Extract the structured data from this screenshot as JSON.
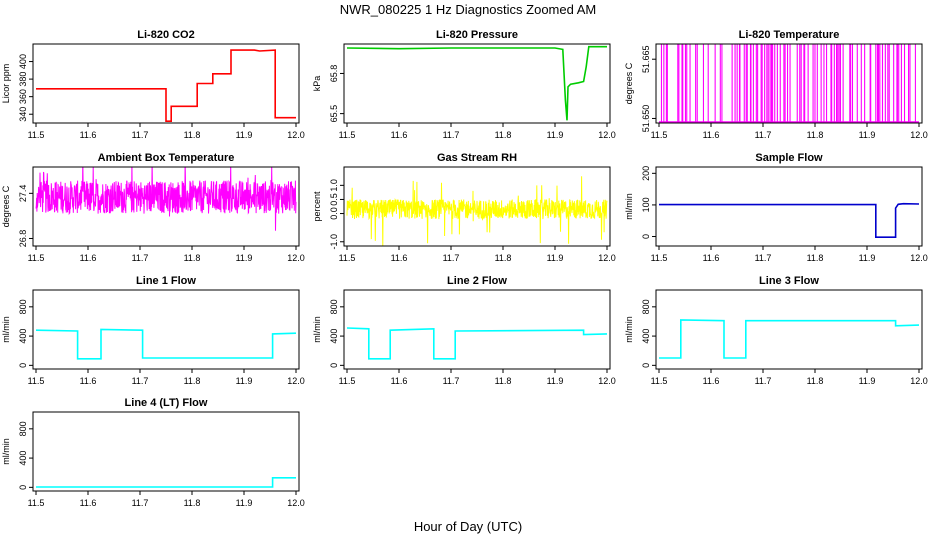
{
  "figure": {
    "title": "NWR_080225  1 Hz Diagnostics Zoomed AM",
    "xlabel": "Hour of Day (UTC)"
  },
  "chart_data": [
    {
      "type": "line",
      "title": "Li-820 CO2",
      "ylabel": "Licor ppm",
      "color": "#ff0000",
      "xlim": [
        11.5,
        12.0
      ],
      "ylim": [
        330,
        420
      ],
      "yticks": [
        340,
        360,
        380,
        400
      ],
      "xticks": [
        11.5,
        11.6,
        11.7,
        11.8,
        11.9,
        12.0
      ],
      "series": [
        {
          "x": [
            11.5,
            11.75,
            11.75,
            11.76,
            11.76,
            11.81,
            11.81,
            11.84,
            11.84,
            11.875,
            11.875,
            11.92,
            11.93,
            11.96,
            11.96,
            12.0
          ],
          "values": [
            369,
            369,
            332,
            332,
            349,
            349,
            375,
            375,
            386,
            386,
            413,
            413,
            412,
            413,
            336,
            336
          ]
        }
      ]
    },
    {
      "type": "line",
      "title": "Li-820 Pressure",
      "ylabel": "kPa",
      "color": "#00cc00",
      "xlim": [
        11.5,
        12.0
      ],
      "ylim": [
        65.43,
        66.02
      ],
      "yticks": [
        65.5,
        65.8
      ],
      "xticks": [
        11.5,
        11.6,
        11.7,
        11.8,
        11.9,
        12.0
      ],
      "series": [
        {
          "x": [
            11.5,
            11.6,
            11.7,
            11.8,
            11.9,
            11.915,
            11.92,
            11.923,
            11.925,
            11.93,
            11.945,
            11.955,
            11.96,
            11.965,
            12.0
          ],
          "values": [
            65.99,
            65.985,
            65.99,
            65.99,
            65.99,
            65.98,
            65.6,
            65.45,
            65.7,
            65.72,
            65.73,
            65.74,
            65.85,
            66.0,
            66.0
          ]
        }
      ]
    },
    {
      "type": "line",
      "title": "Li-820 Temperature",
      "ylabel": "degrees C",
      "color": "#ff00ff",
      "xlim": [
        11.5,
        12.0
      ],
      "ylim": [
        51.64885,
        51.66885
      ],
      "yticks": [
        51.65,
        51.665
      ],
      "ytick_labels": [
        "51.650",
        "51.665"
      ],
      "xticks": [
        11.5,
        11.6,
        11.7,
        11.8,
        11.9,
        12.0
      ],
      "style": "toggle",
      "series": [
        {
          "low": 51.64885,
          "high": 51.66885
        }
      ]
    },
    {
      "type": "line",
      "title": "Ambient Box Temperature",
      "ylabel": "degrees C",
      "color": "#ff00ff",
      "xlim": [
        11.5,
        12.0
      ],
      "ylim": [
        26.7,
        27.75
      ],
      "yticks": [
        26.8,
        27.4
      ],
      "xticks": [
        11.5,
        11.6,
        11.7,
        11.8,
        11.9,
        12.0
      ],
      "style": "noise",
      "series": [
        {
          "center": 27.35,
          "amplitude": 0.22,
          "spike": 0.55
        }
      ]
    },
    {
      "type": "line",
      "title": "Gas Stream RH",
      "ylabel": "percent",
      "color": "#ffff00",
      "xlim": [
        11.5,
        12.0
      ],
      "ylim": [
        -1.15,
        1.65
      ],
      "yticks": [
        -1.0,
        0.0,
        0.5,
        1.0
      ],
      "ytick_labels": [
        "-1.0",
        "0.0",
        "0.5",
        "1.0"
      ],
      "xticks": [
        11.5,
        11.6,
        11.7,
        11.8,
        11.9,
        12.0
      ],
      "style": "noise",
      "series": [
        {
          "center": 0.15,
          "amplitude": 0.35,
          "spike": 1.35
        }
      ]
    },
    {
      "type": "line",
      "title": "Sample Flow",
      "ylabel": "ml/min",
      "color": "#0000cc",
      "xlim": [
        11.5,
        12.0
      ],
      "ylim": [
        -30,
        220
      ],
      "yticks": [
        0,
        100,
        200
      ],
      "xticks": [
        11.5,
        11.6,
        11.7,
        11.8,
        11.9,
        12.0
      ],
      "series": [
        {
          "x": [
            11.5,
            11.917,
            11.917,
            11.955,
            11.955,
            11.96,
            11.97,
            12.0
          ],
          "values": [
            101,
            101,
            -2,
            -2,
            90,
            102,
            104,
            103
          ]
        }
      ]
    },
    {
      "type": "line",
      "title": "Line 1 Flow",
      "ylabel": "ml/min",
      "color": "#00ffff",
      "xlim": [
        11.5,
        12.0
      ],
      "ylim": [
        -50,
        1030
      ],
      "yticks": [
        0,
        400,
        800
      ],
      "xticks": [
        11.5,
        11.6,
        11.7,
        11.8,
        11.9,
        12.0
      ],
      "series": [
        {
          "x": [
            11.5,
            11.58,
            11.58,
            11.625,
            11.625,
            11.705,
            11.705,
            11.955,
            11.955,
            12.0
          ],
          "values": [
            480,
            470,
            90,
            90,
            490,
            480,
            100,
            100,
            430,
            440
          ]
        }
      ]
    },
    {
      "type": "line",
      "title": "Line 2 Flow",
      "ylabel": "ml/min",
      "color": "#00ffff",
      "xlim": [
        11.5,
        12.0
      ],
      "ylim": [
        -50,
        1030
      ],
      "yticks": [
        0,
        400,
        800
      ],
      "xticks": [
        11.5,
        11.6,
        11.7,
        11.8,
        11.9,
        12.0
      ],
      "series": [
        {
          "x": [
            11.5,
            11.542,
            11.542,
            11.583,
            11.583,
            11.667,
            11.667,
            11.708,
            11.708,
            11.955,
            11.955,
            12.0
          ],
          "values": [
            510,
            500,
            90,
            90,
            480,
            500,
            90,
            90,
            470,
            480,
            420,
            430
          ]
        }
      ]
    },
    {
      "type": "line",
      "title": "Line 3 Flow",
      "ylabel": "ml/min",
      "color": "#00ffff",
      "xlim": [
        11.5,
        12.0
      ],
      "ylim": [
        -50,
        1030
      ],
      "yticks": [
        0,
        400,
        800
      ],
      "xticks": [
        11.5,
        11.6,
        11.7,
        11.8,
        11.9,
        12.0
      ],
      "series": [
        {
          "x": [
            11.5,
            11.542,
            11.542,
            11.625,
            11.625,
            11.667,
            11.667,
            11.955,
            11.955,
            12.0
          ],
          "values": [
            100,
            100,
            620,
            610,
            100,
            100,
            610,
            610,
            540,
            550
          ]
        }
      ]
    },
    {
      "type": "line",
      "title": "Line 4 (LT) Flow",
      "ylabel": "ml/min",
      "color": "#00ffff",
      "xlim": [
        11.5,
        12.0
      ],
      "ylim": [
        -50,
        1030
      ],
      "yticks": [
        0,
        400,
        800
      ],
      "xticks": [
        11.5,
        11.6,
        11.7,
        11.8,
        11.9,
        12.0
      ],
      "series": [
        {
          "x": [
            11.5,
            11.955,
            11.955,
            12.0
          ],
          "values": [
            5,
            5,
            130,
            130
          ]
        }
      ]
    }
  ]
}
